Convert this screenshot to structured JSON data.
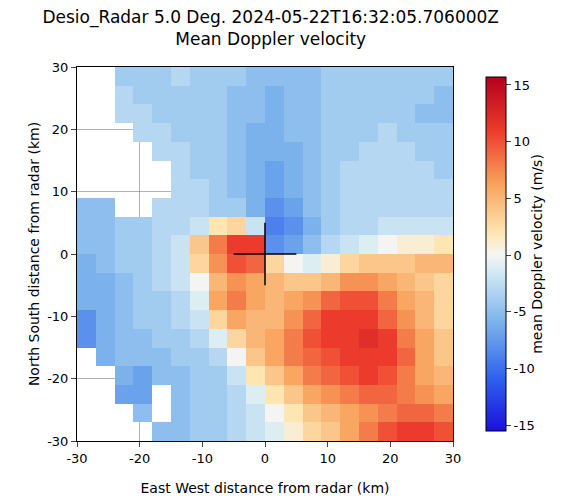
{
  "chart_data": {
    "type": "heatmap",
    "title": "Desio_Radar 5.0 Deg. 2024-05-22T16:32:05.706000Z",
    "subtitle": "Mean Doppler velocity",
    "x_label": "East West distance from radar (km)",
    "y_label": "North South distance from radar (km)",
    "colorbar_label": "mean Doppler velocity (m/s)",
    "x": [
      -28.5,
      -25.5,
      -22.5,
      -19.5,
      -16.5,
      -13.5,
      -10.5,
      -7.5,
      -4.5,
      -1.5,
      1.5,
      4.5,
      7.5,
      10.5,
      13.5,
      16.5,
      19.5,
      22.5,
      25.5,
      28.5
    ],
    "y": [
      28.5,
      25.5,
      22.5,
      19.5,
      16.5,
      13.5,
      10.5,
      7.5,
      4.5,
      1.5,
      -1.5,
      -4.5,
      -7.5,
      -10.5,
      -13.5,
      -16.5,
      -19.5,
      -22.5,
      -25.5,
      -28.5
    ],
    "cells": [
      [
        null,
        null,
        -4,
        -4,
        -4,
        -3,
        -4,
        -4,
        -4,
        -5,
        -5,
        -5,
        -5,
        -4,
        -4,
        -4,
        -4,
        -4,
        -4,
        -4
      ],
      [
        null,
        null,
        -3,
        -4,
        -4,
        -4,
        -4,
        -4,
        -5,
        -5,
        -6,
        -5,
        -5,
        -4,
        -4,
        -4,
        -4,
        -4,
        -4,
        -5
      ],
      [
        null,
        null,
        -3,
        -3,
        -4,
        -4,
        -4,
        -4,
        -5,
        -5,
        -6,
        -5,
        -5,
        -4,
        -4,
        -4,
        -4,
        -4,
        -5,
        -5
      ],
      [
        null,
        null,
        null,
        -3,
        -3,
        -4,
        -4,
        -4,
        -5,
        -6,
        -6,
        -5,
        -5,
        -4,
        -4,
        -4,
        -3,
        -4,
        -4,
        -4
      ],
      [
        null,
        null,
        null,
        null,
        -3,
        -3,
        -4,
        -4,
        -5,
        -6,
        -6,
        -6,
        -5,
        -4,
        -4,
        -3,
        -3,
        -3,
        -4,
        -4
      ],
      [
        null,
        null,
        null,
        null,
        null,
        -3,
        -4,
        -4,
        -5,
        -6,
        -7,
        -6,
        -5,
        -4,
        -3,
        -3,
        -3,
        -3,
        -3,
        -4
      ],
      [
        null,
        null,
        null,
        null,
        null,
        -3,
        -3,
        -4,
        -5,
        -6,
        -7,
        -6,
        -5,
        -4,
        -3,
        -3,
        -3,
        -3,
        -3,
        -3
      ],
      [
        -5,
        -5,
        null,
        null,
        -3,
        -3,
        -3,
        -4,
        -4,
        -6,
        -8,
        -7,
        -5,
        -4,
        -3,
        -3,
        -3,
        -3,
        -3,
        -3
      ],
      [
        -5,
        -5,
        -4,
        -4,
        -3,
        -3,
        -2,
        2,
        3,
        -2,
        -9,
        -8,
        -6,
        -4,
        -3,
        -3,
        -2,
        -2,
        -2,
        -2
      ],
      [
        -5,
        -5,
        -4,
        -4,
        -3,
        -2,
        4,
        8,
        11,
        11,
        -8,
        -7,
        -5,
        -3,
        -2,
        -1,
        0,
        1,
        1,
        2
      ],
      [
        -6,
        -5,
        -4,
        -4,
        -3,
        -2,
        3,
        7,
        10,
        9,
        3,
        0,
        -1,
        1,
        3,
        4,
        4,
        4,
        5,
        5
      ],
      [
        -6,
        -6,
        -5,
        -4,
        -3,
        -2,
        0,
        5,
        7,
        6,
        5,
        4,
        4,
        5,
        7,
        7,
        6,
        5,
        4,
        3
      ],
      [
        -6,
        -6,
        -5,
        -4,
        -4,
        -3,
        -1,
        6,
        8,
        6,
        5,
        6,
        7,
        9,
        10,
        10,
        8,
        6,
        5,
        3
      ],
      [
        -8,
        -6,
        -5,
        -4,
        -4,
        -3,
        -2,
        3,
        6,
        5,
        5,
        7,
        9,
        11,
        11,
        11,
        9,
        7,
        5,
        3
      ],
      [
        -8,
        -6,
        -5,
        -5,
        -4,
        -4,
        -3,
        -1,
        3,
        5,
        6,
        8,
        10,
        11,
        11,
        12,
        11,
        8,
        6,
        4
      ],
      [
        null,
        -6,
        -5,
        -5,
        -5,
        -4,
        -4,
        -3,
        0,
        4,
        6,
        8,
        9,
        10,
        11,
        11,
        11,
        9,
        6,
        4
      ],
      [
        null,
        null,
        -6,
        -7,
        -5,
        -5,
        -4,
        -4,
        -2,
        2,
        4,
        6,
        8,
        9,
        10,
        11,
        10,
        8,
        6,
        5
      ],
      [
        null,
        null,
        -7,
        -7,
        null,
        -5,
        -4,
        -4,
        -3,
        -1,
        2,
        4,
        6,
        7,
        8,
        9,
        9,
        8,
        7,
        6
      ],
      [
        null,
        null,
        null,
        -5,
        null,
        -5,
        -4,
        -4,
        -3,
        -2,
        0,
        2,
        4,
        5,
        6,
        7,
        8,
        9,
        9,
        8
      ],
      [
        null,
        null,
        null,
        null,
        -5,
        -5,
        -4,
        -4,
        -3,
        -2,
        -1,
        1,
        3,
        4,
        6,
        8,
        10,
        11,
        11,
        10
      ]
    ],
    "xlim": [
      -30,
      30
    ],
    "ylim": [
      -30,
      30
    ],
    "xticks": [
      -30,
      -20,
      -10,
      0,
      10,
      20,
      30
    ],
    "yticks": [
      -30,
      -20,
      -10,
      0,
      10,
      20,
      30
    ],
    "colorbar_range": [
      -15.5,
      15.7
    ],
    "colorbar_ticks": [
      -15,
      -10,
      -5,
      0,
      5,
      10,
      15
    ],
    "radar_position": [
      0,
      0
    ],
    "cross_half_length": 5,
    "grid": true
  }
}
